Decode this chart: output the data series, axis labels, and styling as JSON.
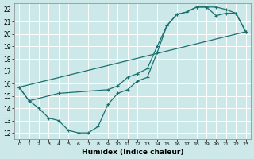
{
  "xlabel": "Humidex (Indice chaleur)",
  "background_color": "#cce8e8",
  "grid_color": "#ffffff",
  "line_color": "#1a7070",
  "xlim": [
    -0.5,
    23.5
  ],
  "ylim": [
    11.5,
    22.5
  ],
  "xticks": [
    0,
    1,
    2,
    3,
    4,
    5,
    6,
    7,
    8,
    9,
    10,
    11,
    12,
    13,
    14,
    15,
    16,
    17,
    18,
    19,
    20,
    21,
    22,
    23
  ],
  "yticks": [
    12,
    13,
    14,
    15,
    16,
    17,
    18,
    19,
    20,
    21,
    22
  ],
  "curve1_x": [
    0,
    1,
    2,
    3,
    4,
    5,
    6,
    7,
    8,
    9,
    10,
    11,
    12,
    13,
    14,
    15,
    16,
    17,
    18,
    19,
    20,
    21,
    22,
    23
  ],
  "curve1_y": [
    15.7,
    14.6,
    14.0,
    13.2,
    13.0,
    12.2,
    12.0,
    12.0,
    12.5,
    14.3,
    15.2,
    15.5,
    16.2,
    16.5,
    18.5,
    20.7,
    21.6,
    21.8,
    22.2,
    22.2,
    21.5,
    21.7,
    21.7,
    20.2
  ],
  "curve2_x": [
    0,
    1,
    4,
    9,
    10,
    11,
    12,
    13,
    14,
    15,
    16,
    17,
    18,
    19,
    20,
    21,
    22,
    23
  ],
  "curve2_y": [
    15.7,
    14.6,
    15.2,
    15.5,
    15.8,
    16.5,
    16.8,
    17.2,
    19.0,
    20.7,
    21.6,
    21.8,
    22.2,
    22.2,
    22.2,
    22.0,
    21.7,
    20.2
  ],
  "curve3_x": [
    0,
    23
  ],
  "curve3_y": [
    15.7,
    20.2
  ]
}
